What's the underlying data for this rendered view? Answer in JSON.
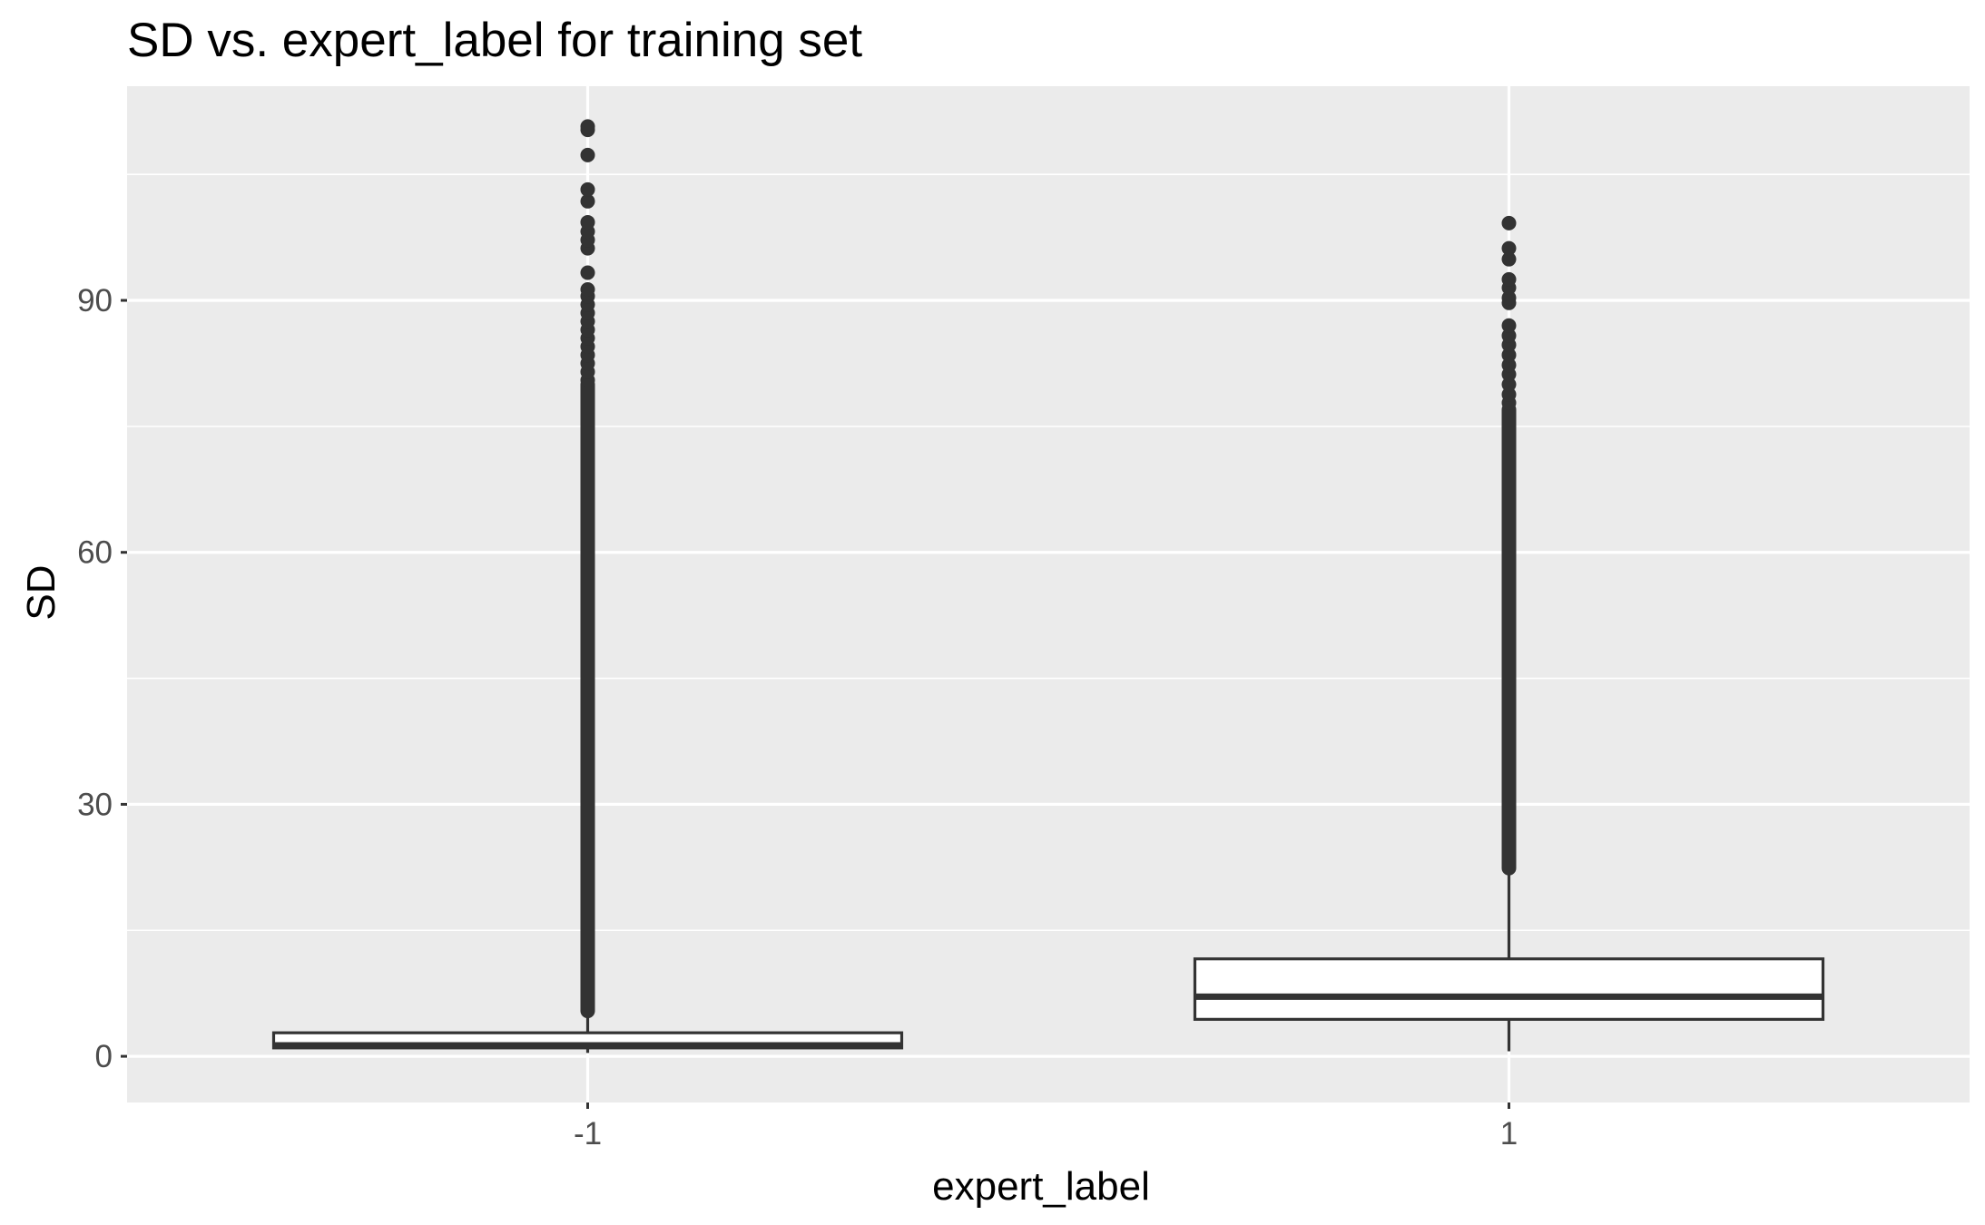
{
  "chart_data": {
    "type": "box",
    "title": "SD vs. expert_label for training set",
    "xlabel": "expert_label",
    "ylabel": "SD",
    "categories": [
      "-1",
      "1"
    ],
    "y_ticks": [
      0,
      30,
      60,
      90
    ],
    "ylim": [
      -5.5,
      115.5
    ],
    "grid": true,
    "legend": "none",
    "colors": {
      "panel_background": "#ebebeb",
      "grid": "#ffffff",
      "box_fill": "#ffffff",
      "box_line": "#333333",
      "outlier": "#333333",
      "tick_label": "#4d4d4d"
    },
    "boxes": [
      {
        "category": "-1",
        "whisker_low": 0.4,
        "q1": 1.0,
        "median": 1.3,
        "q3": 2.8,
        "whisker_high": 5.4,
        "outliers_continuous_range": [
          5.4,
          80
        ],
        "outliers_discrete": [
          80.5,
          81.5,
          82.5,
          83.5,
          84.5,
          85.5,
          86.5,
          87.5,
          88.5,
          89.5,
          90.5,
          91.3,
          93.3,
          96.2,
          97.2,
          98.2,
          99.3,
          101.8,
          103.2,
          107.3,
          110.3,
          110.7
        ]
      },
      {
        "category": "1",
        "whisker_low": 0.6,
        "q1": 4.4,
        "median": 7.1,
        "q3": 11.6,
        "whisker_high": 22.4,
        "outliers_continuous_range": [
          22.4,
          77
        ],
        "outliers_discrete": [
          77.8,
          78.8,
          80.0,
          81.2,
          82.3,
          83.5,
          84.7,
          85.8,
          87.0,
          89.7,
          90.3,
          91.5,
          92.5,
          94.9,
          96.2,
          99.2
        ]
      }
    ]
  }
}
